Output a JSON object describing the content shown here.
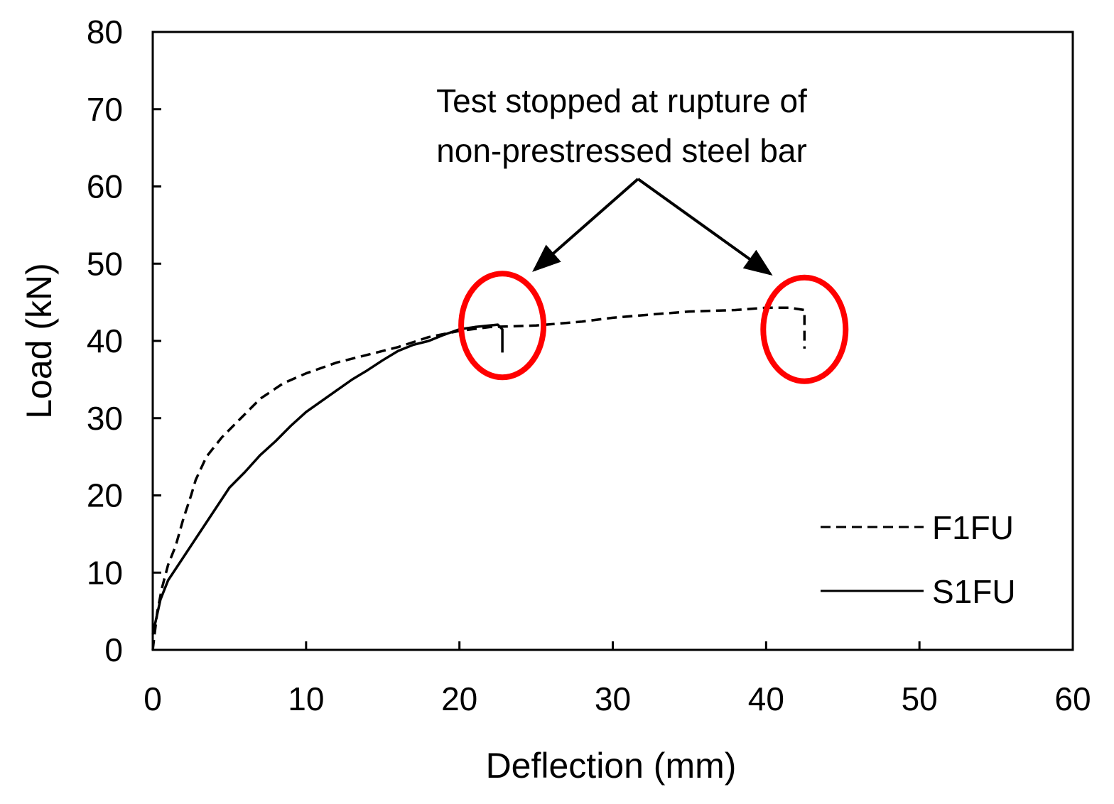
{
  "chart_data": {
    "type": "line",
    "title": "",
    "xlabel": "Deflection (mm)",
    "ylabel": "Load (kN)",
    "xlim": [
      0,
      60
    ],
    "ylim": [
      0,
      80
    ],
    "xticks": [
      0,
      10,
      20,
      30,
      40,
      50,
      60
    ],
    "yticks": [
      0,
      10,
      20,
      30,
      40,
      50,
      60,
      70,
      80
    ],
    "grid": false,
    "legend_position": "bottom-right",
    "colors": {
      "series": "#000000",
      "highlight": "#ff0000",
      "axis": "#000000"
    },
    "series": [
      {
        "name": "F1FU",
        "style": "dashed",
        "x": [
          0,
          0.3,
          0.6,
          1.0,
          1.5,
          2.0,
          2.5,
          2.8,
          3.5,
          4.5,
          5.5,
          7,
          8.5,
          10,
          12,
          14,
          16,
          18,
          20,
          22,
          25,
          28,
          30,
          33,
          35,
          38,
          40,
          41.5,
          42.5,
          42.5
        ],
        "y": [
          0,
          5,
          8,
          11,
          13.5,
          17,
          20,
          22,
          25,
          27.5,
          29.5,
          32.5,
          34.5,
          35.8,
          37.2,
          38.2,
          39.2,
          40.5,
          41.3,
          41.8,
          42,
          42.5,
          43,
          43.5,
          43.8,
          44,
          44.3,
          44.3,
          44,
          39
        ]
      },
      {
        "name": "S1FU",
        "style": "solid",
        "x": [
          0,
          0.5,
          1.0,
          2.0,
          3.0,
          4.0,
          5.0,
          6.0,
          7.0,
          8.0,
          9.0,
          10.0,
          11.0,
          12.0,
          13.0,
          14.0,
          15.0,
          16.0,
          17.0,
          18.0,
          19.0,
          20.0,
          21.0,
          22.5,
          22.8,
          22.8
        ],
        "y": [
          2,
          6.5,
          9,
          12,
          15,
          18,
          21,
          23,
          25.2,
          27,
          29,
          30.8,
          32.2,
          33.6,
          35,
          36.2,
          37.5,
          38.7,
          39.5,
          40,
          40.8,
          41.5,
          41.8,
          42.1,
          41.5,
          38.5
        ]
      }
    ],
    "annotation": {
      "lines": [
        "Test stopped at rupture of",
        "non-prestressed steel bar"
      ],
      "targets": [
        [
          22.8,
          42
        ],
        [
          42.5,
          41.5
        ]
      ]
    }
  }
}
